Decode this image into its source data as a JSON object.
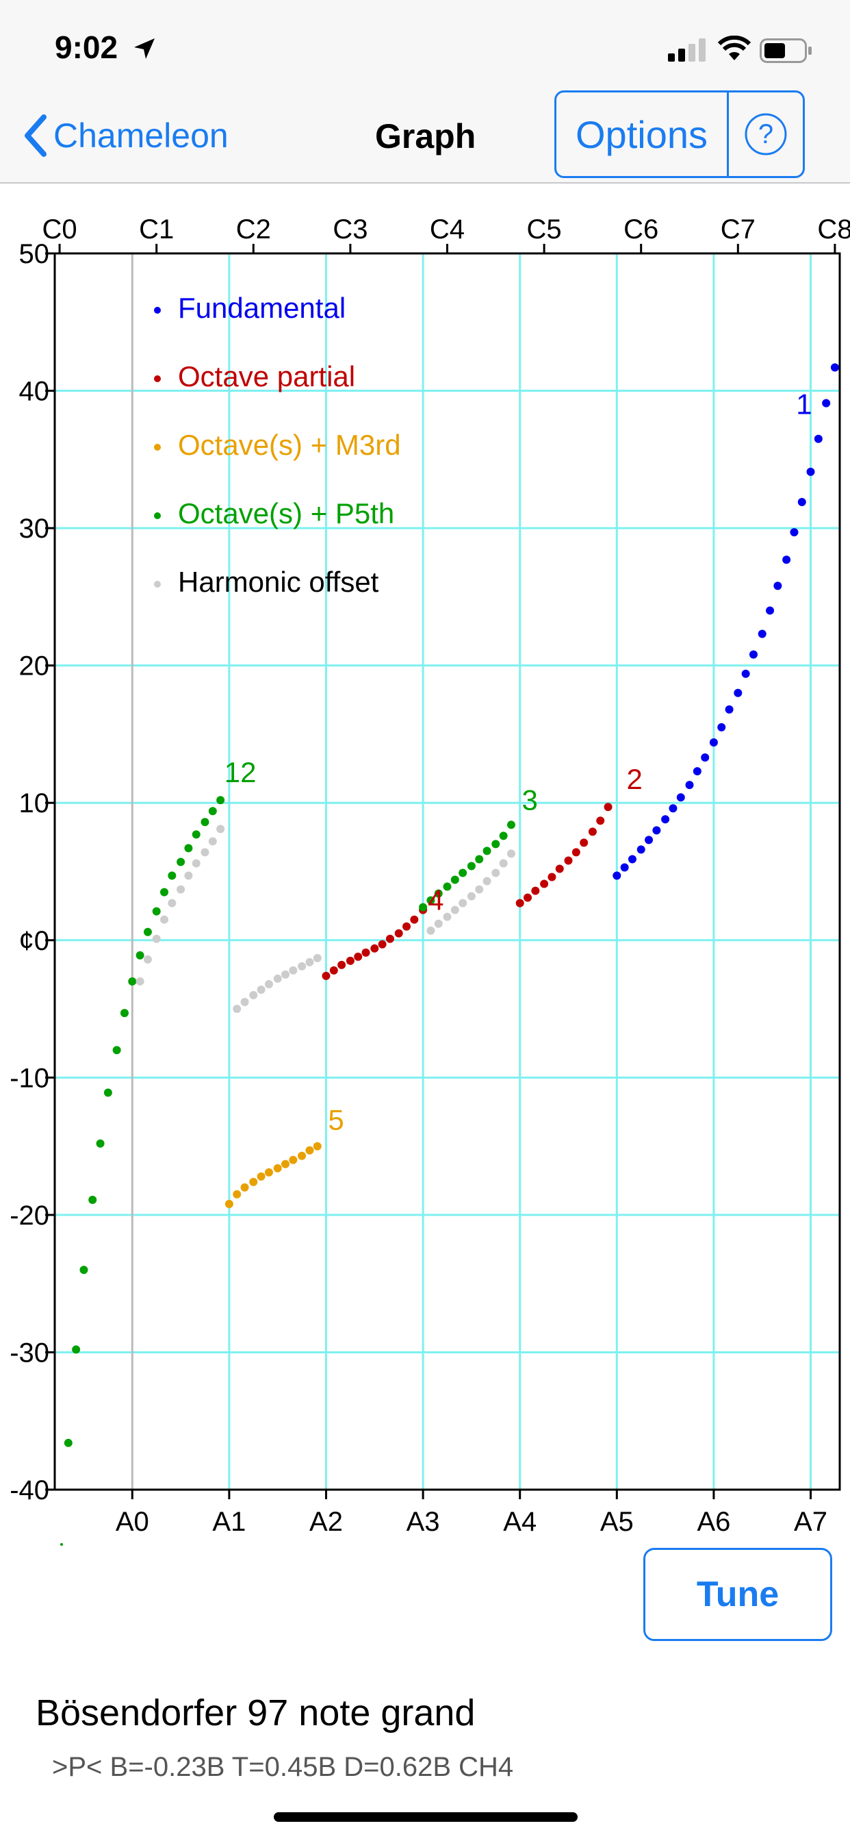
{
  "status_bar": {
    "time": "9:02"
  },
  "nav": {
    "back_label": "Chameleon",
    "title": "Graph",
    "options_label": "Options",
    "help_label": "?"
  },
  "chart_data": {
    "type": "scatter",
    "title": "",
    "xlabel": "",
    "ylabel": "¢",
    "xlim": [
      -0.8,
      7.3
    ],
    "ylim": [
      -40,
      50
    ],
    "y_ticks": [
      "50",
      "40",
      "30",
      "20",
      "10",
      "¢0",
      "-10",
      "-20",
      "-30",
      "-40"
    ],
    "x_ticks_bottom": [
      "A0",
      "A1",
      "A2",
      "A3",
      "A4",
      "A5",
      "A6",
      "A7"
    ],
    "x_ticks_top": [
      "C0",
      "C1",
      "C2",
      "C3",
      "C4",
      "C5",
      "C6",
      "C7",
      "C8"
    ],
    "grid": true,
    "grid_color": "#7ff0f0",
    "legend_position": "top-left",
    "legend": [
      {
        "label": "Fundamental",
        "color": "#0000ee"
      },
      {
        "label": "Octave partial",
        "color": "#c00000"
      },
      {
        "label": "Octave(s) + M3rd",
        "color": "#e8a000"
      },
      {
        "label": "Octave(s) + P5th",
        "color": "#00a000"
      },
      {
        "label": "Harmonic offset",
        "color": "#cccccc"
      }
    ],
    "series": [
      {
        "name": "Fundamental",
        "color": "#0000ee",
        "x": [
          5.0,
          5.08,
          5.16,
          5.25,
          5.33,
          5.41,
          5.5,
          5.58,
          5.66,
          5.75,
          5.83,
          5.91,
          6.0,
          6.08,
          6.16,
          6.25,
          6.33,
          6.41,
          6.5,
          6.58,
          6.66,
          6.75,
          6.83,
          6.91,
          7.0,
          7.08,
          7.16,
          7.25
        ],
        "y": [
          4.7,
          5.3,
          5.9,
          6.6,
          7.3,
          8.0,
          8.8,
          9.6,
          10.4,
          11.3,
          12.3,
          13.3,
          14.4,
          15.5,
          16.8,
          18.0,
          19.4,
          20.8,
          22.3,
          24.0,
          25.8,
          27.7,
          29.7,
          31.9,
          34.1,
          36.5,
          39.1,
          41.7
        ]
      },
      {
        "name": "Octave partial",
        "color": "#c00000",
        "x": [
          2.0,
          2.08,
          2.16,
          2.25,
          2.33,
          2.41,
          2.5,
          2.58,
          2.66,
          2.75,
          2.83,
          2.91,
          3.0,
          4.0,
          4.08,
          4.16,
          4.25,
          4.33,
          4.41,
          4.5,
          4.58,
          4.66,
          4.75,
          4.83,
          4.91
        ],
        "y": [
          -2.6,
          -2.2,
          -1.8,
          -1.5,
          -1.2,
          -0.9,
          -0.6,
          -0.3,
          0.1,
          0.5,
          1.0,
          1.5,
          2.2,
          2.7,
          3.1,
          3.6,
          4.1,
          4.6,
          5.2,
          5.8,
          6.4,
          7.1,
          7.9,
          8.7,
          9.7
        ]
      },
      {
        "name": "Octave(s) + M3rd",
        "color": "#e8a000",
        "x": [
          1.0,
          1.08,
          1.16,
          1.25,
          1.33,
          1.41,
          1.5,
          1.58,
          1.66,
          1.75,
          1.83,
          1.91
        ],
        "y": [
          -19.2,
          -18.5,
          -18.0,
          -17.6,
          -17.2,
          -16.9,
          -16.6,
          -16.3,
          -16.0,
          -15.7,
          -15.3,
          -15.0
        ]
      },
      {
        "name": "Octave(s) + P5th",
        "color": "#00a000",
        "x": [
          -0.66,
          -0.58,
          -0.5,
          -0.41,
          -0.33,
          -0.25,
          -0.16,
          -0.08,
          0.0,
          0.08,
          0.16,
          0.25,
          0.33,
          0.41,
          0.5,
          0.58,
          0.66,
          0.75,
          0.83,
          0.91,
          3.0,
          3.08,
          3.16,
          3.25,
          3.33,
          3.41,
          3.5,
          3.58,
          3.66,
          3.75,
          3.83,
          3.91
        ],
        "y": [
          -36.6,
          -29.8,
          -24.0,
          -18.9,
          -14.8,
          -11.1,
          -8.0,
          -5.3,
          -3.0,
          -1.1,
          0.6,
          2.1,
          3.5,
          4.7,
          5.7,
          6.7,
          7.7,
          8.6,
          9.4,
          10.2,
          2.4,
          2.9,
          3.4,
          3.9,
          4.4,
          4.9,
          5.4,
          5.9,
          6.5,
          7.0,
          7.6,
          8.4
        ]
      },
      {
        "name": "Harmonic offset",
        "color": "#cccccc",
        "x": [
          0.08,
          0.16,
          0.25,
          0.33,
          0.41,
          0.5,
          0.58,
          0.66,
          0.75,
          0.83,
          0.91,
          1.08,
          1.16,
          1.25,
          1.33,
          1.41,
          1.5,
          1.58,
          1.66,
          1.75,
          1.83,
          1.91,
          3.08,
          3.16,
          3.25,
          3.33,
          3.41,
          3.5,
          3.58,
          3.66,
          3.75,
          3.83,
          3.91
        ],
        "y": [
          -3.0,
          -1.4,
          0.1,
          1.5,
          2.7,
          3.7,
          4.7,
          5.6,
          6.4,
          7.2,
          8.1,
          -5.0,
          -4.5,
          -4.0,
          -3.6,
          -3.2,
          -2.8,
          -2.5,
          -2.2,
          -1.9,
          -1.6,
          -1.3,
          0.7,
          1.2,
          1.7,
          2.2,
          2.7,
          3.2,
          3.7,
          4.3,
          4.9,
          5.6,
          6.3
        ]
      }
    ],
    "annotations": [
      {
        "text": "1",
        "x": 6.85,
        "y": 38.3,
        "color": "#0000ee"
      },
      {
        "text": "2",
        "x": 5.1,
        "y": 11.0,
        "color": "#c00000"
      },
      {
        "text": "3",
        "x": 4.02,
        "y": 9.5,
        "color": "#00a000"
      },
      {
        "text": "4",
        "x": 3.05,
        "y": 2.2,
        "color": "#c00000"
      },
      {
        "text": "5",
        "x": 2.02,
        "y": -13.8,
        "color": "#e8a000"
      },
      {
        "text": "12",
        "x": 0.95,
        "y": 11.5,
        "color": "#00a000"
      }
    ]
  },
  "tune_label": "Tune",
  "piano": {
    "name": "Bösendorfer 97 note grand",
    "params": ">P< B=-0.23B T=0.45B D=0.62B CH4"
  }
}
